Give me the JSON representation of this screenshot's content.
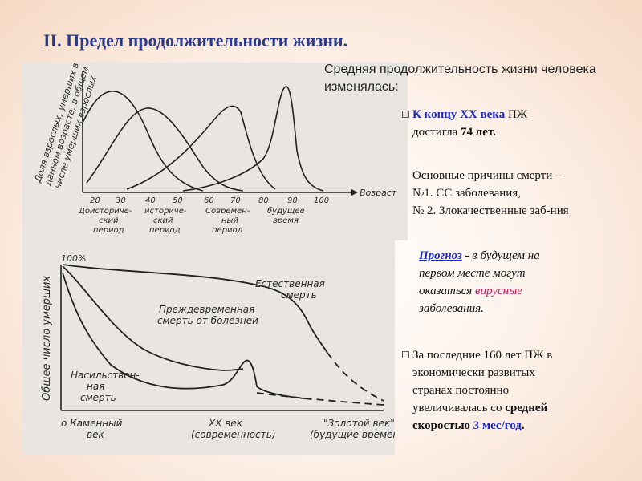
{
  "title": "II. Предел продолжительности жизни.",
  "intro": "Средняя продолжительность жизни человека изменялась:",
  "bullet1": {
    "icon": "checkbox-icon",
    "lead": "К концу XX века",
    "mid": " ПЖ",
    "line2_pre": "достигла ",
    "value": "74 лет."
  },
  "causes": {
    "line1": "Основные причины смерти –",
    "line2": "№1.   СС заболевания,",
    "line3": "№ 2. Злокачественные заб-ния"
  },
  "forecast": {
    "label": "Прогноз",
    "text1": " - в будущем на",
    "line2": "первом месте могут",
    "line3_pre": "оказаться ",
    "viral": "вирусные",
    "line4": "заболевания."
  },
  "bullet2": {
    "icon": "checkbox-icon",
    "line1": "За последние 160 лет ПЖ в",
    "line2": "экономически развитых",
    "line3": "странах постоянно",
    "line4_pre": "увеличивалась со ",
    "line4_bold": "средней",
    "line5_bold": "скоростью ",
    "rate": "3 мес/год",
    "dot": "."
  },
  "figure1": {
    "ylabel_lines": [
      "Доля взрослых, умерших в",
      "данном возрасте, в общем",
      "числе умерших взрослых"
    ],
    "xlabel": "Возраст",
    "ticks": [
      "20",
      "30",
      "40",
      "50",
      "60",
      "70",
      "80",
      "90",
      "100"
    ],
    "periods": [
      {
        "l1": "Доисториче-",
        "l2": "ский",
        "l3": "период"
      },
      {
        "l1": "историче-",
        "l2": "ский",
        "l3": "период"
      },
      {
        "l1": "Современ-",
        "l2": "ный",
        "l3": "период"
      },
      {
        "l1": "будущее",
        "l2": "время",
        "l3": ""
      }
    ]
  },
  "figure2": {
    "top_label": "100%",
    "ylabel": "Общее число умерших",
    "natural": [
      "Естественная",
      "смерть"
    ],
    "premature": [
      "Преждевременная",
      "смерть от болезней"
    ],
    "violent": [
      "Насильствен-",
      "ная",
      "смерть"
    ],
    "stone": [
      "о Каменный",
      "век"
    ],
    "modern": [
      "XX век",
      "(современность)"
    ],
    "golden": [
      "\"Золотой век\"",
      "(будущие времена)"
    ]
  }
}
